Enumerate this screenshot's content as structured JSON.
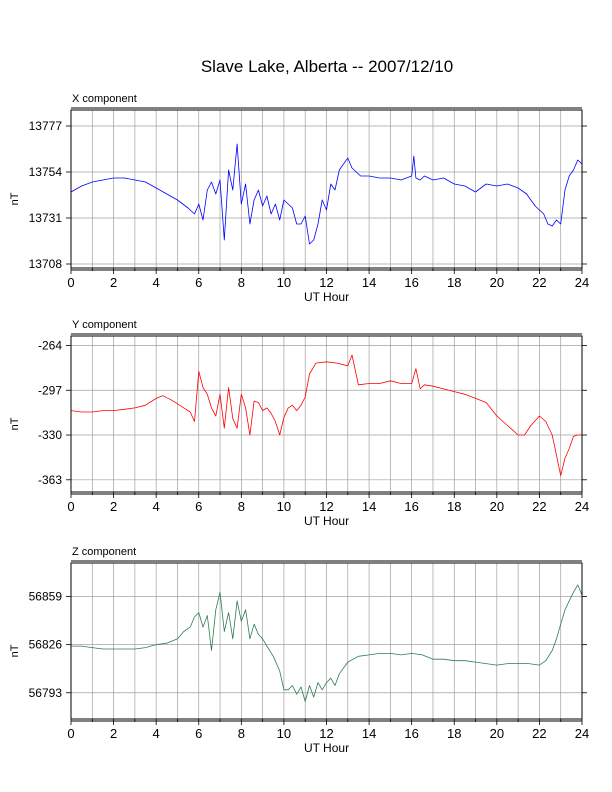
{
  "title": "Slave Lake, Alberta -- 2007/12/10",
  "chart_data": [
    {
      "type": "line",
      "panel_label": "X component",
      "ylabel": "nT",
      "xlabel": "UT Hour",
      "xlim": [
        0,
        24
      ],
      "ylim": [
        13706,
        13785
      ],
      "x_ticks": [
        "0",
        "2",
        "4",
        "6",
        "8",
        "10",
        "12",
        "14",
        "16",
        "18",
        "20",
        "22",
        "24"
      ],
      "y_ticks": [
        13708,
        13731,
        13754,
        13777
      ],
      "color": "#0000ff",
      "grid": true,
      "series": [
        {
          "x": [
            0,
            0.5,
            1,
            1.5,
            2,
            2.5,
            3,
            3.5,
            4,
            4.5,
            5,
            5.5,
            5.8,
            6,
            6.2,
            6.4,
            6.6,
            6.8,
            7,
            7.2,
            7.4,
            7.6,
            7.8,
            8,
            8.2,
            8.4,
            8.6,
            8.8,
            9,
            9.2,
            9.4,
            9.6,
            9.8,
            10,
            10.2,
            10.4,
            10.6,
            10.8,
            11,
            11.2,
            11.4,
            11.6,
            11.8,
            12,
            12.2,
            12.4,
            12.6,
            12.8,
            13,
            13.2,
            13.4,
            13.6,
            14,
            14.5,
            15,
            15.5,
            16,
            16.1,
            16.2,
            16.4,
            16.6,
            17,
            17.5,
            18,
            18.5,
            19,
            19.5,
            20,
            20.5,
            21,
            21.4,
            21.8,
            22,
            22.2,
            22.4,
            22.6,
            22.8,
            23,
            23.2,
            23.4,
            23.6,
            23.8,
            24
          ],
          "values": [
            13744,
            13747,
            13749,
            13750,
            13751,
            13751,
            13750,
            13749,
            13746,
            13743,
            13740,
            13736,
            13733,
            13738,
            13730,
            13745,
            13749,
            13743,
            13750,
            13720,
            13755,
            13745,
            13768,
            13738,
            13748,
            13728,
            13740,
            13745,
            13737,
            13742,
            13733,
            13738,
            13730,
            13740,
            13738,
            13736,
            13728,
            13728,
            13732,
            13718,
            13720,
            13728,
            13740,
            13735,
            13748,
            13745,
            13755,
            13758,
            13761,
            13756,
            13754,
            13752,
            13752,
            13751,
            13751,
            13750,
            13752,
            13762,
            13751,
            13750,
            13752,
            13750,
            13751,
            13748,
            13747,
            13744,
            13748,
            13747,
            13748,
            13746,
            13743,
            13737,
            13735,
            13733,
            13728,
            13727,
            13730,
            13728,
            13745,
            13752,
            13755,
            13760,
            13758
          ]
        }
      ]
    },
    {
      "type": "line",
      "panel_label": "Y component",
      "ylabel": "nT",
      "xlabel": "UT Hour",
      "xlim": [
        0,
        24
      ],
      "ylim": [
        -372,
        -257
      ],
      "x_ticks": [
        "0",
        "2",
        "4",
        "6",
        "8",
        "10",
        "12",
        "14",
        "16",
        "18",
        "20",
        "22",
        "24"
      ],
      "y_ticks": [
        -264,
        -297,
        -330,
        -363
      ],
      "color": "#ff0000",
      "grid": true,
      "series": [
        {
          "x": [
            0,
            0.5,
            1,
            1.5,
            2,
            2.5,
            3,
            3.5,
            4,
            4.3,
            4.7,
            5,
            5.3,
            5.6,
            5.8,
            6,
            6.2,
            6.4,
            6.6,
            6.8,
            7,
            7.2,
            7.4,
            7.6,
            7.8,
            8,
            8.2,
            8.4,
            8.6,
            8.8,
            9,
            9.2,
            9.4,
            9.6,
            9.8,
            10,
            10.2,
            10.4,
            10.6,
            10.8,
            11,
            11.2,
            11.5,
            12,
            12.5,
            13,
            13.2,
            13.5,
            14,
            14.5,
            15,
            15.5,
            16,
            16.2,
            16.4,
            16.6,
            17,
            17.5,
            18,
            18.5,
            19,
            19.5,
            20,
            20.5,
            21,
            21.3,
            21.6,
            22,
            22.3,
            22.6,
            22.8,
            23,
            23.2,
            23.4,
            23.6,
            23.8,
            24
          ],
          "values": [
            -312,
            -313,
            -313,
            -312,
            -312,
            -311,
            -310,
            -308,
            -303,
            -301,
            -304,
            -307,
            -310,
            -313,
            -320,
            -283,
            -295,
            -300,
            -310,
            -316,
            -300,
            -325,
            -295,
            -318,
            -325,
            -300,
            -310,
            -330,
            -305,
            -306,
            -312,
            -310,
            -314,
            -320,
            -330,
            -317,
            -310,
            -308,
            -312,
            -308,
            -302,
            -285,
            -277,
            -276,
            -277,
            -279,
            -271,
            -293,
            -292,
            -292,
            -290,
            -292,
            -292,
            -281,
            -296,
            -293,
            -294,
            -296,
            -298,
            -300,
            -303,
            -306,
            -316,
            -323,
            -330,
            -330,
            -323,
            -316,
            -320,
            -330,
            -345,
            -360,
            -347,
            -340,
            -331,
            -330,
            -330
          ]
        }
      ]
    },
    {
      "type": "line",
      "panel_label": "Z component",
      "ylabel": "nT",
      "xlabel": "UT Hour",
      "xlim": [
        0,
        24
      ],
      "ylim": [
        6775,
        6882
      ],
      "tick_label_prefix": "56",
      "x_ticks": [
        "0",
        "2",
        "4",
        "6",
        "8",
        "10",
        "12",
        "14",
        "16",
        "18",
        "20",
        "22",
        "24"
      ],
      "y_ticks": [
        "56793",
        "56826",
        "56859"
      ],
      "y_tick_values": [
        6793,
        6826,
        6859
      ],
      "color": "#2e7d4f",
      "grid": true,
      "series": [
        {
          "x": [
            0,
            0.5,
            1,
            1.5,
            2,
            2.5,
            3,
            3.5,
            4,
            4.5,
            5,
            5.3,
            5.6,
            5.8,
            6,
            6.2,
            6.4,
            6.6,
            6.8,
            7,
            7.2,
            7.4,
            7.6,
            7.8,
            8,
            8.2,
            8.4,
            8.6,
            8.8,
            9,
            9.2,
            9.5,
            9.8,
            10,
            10.2,
            10.4,
            10.6,
            10.8,
            11,
            11.2,
            11.4,
            11.6,
            11.8,
            12,
            12.2,
            12.4,
            12.6,
            12.8,
            13,
            13.5,
            14,
            14.5,
            15,
            15.5,
            16,
            16.5,
            17,
            17.5,
            18,
            18.5,
            19,
            19.5,
            20,
            20.5,
            21,
            21.5,
            22,
            22.3,
            22.6,
            22.8,
            23,
            23.2,
            23.4,
            23.6,
            23.8,
            24
          ],
          "values": [
            6825,
            6825,
            6824,
            6823,
            6823,
            6823,
            6823,
            6824,
            6826,
            6827,
            6830,
            6835,
            6838,
            6845,
            6848,
            6838,
            6846,
            6822,
            6850,
            6862,
            6835,
            6848,
            6830,
            6856,
            6842,
            6850,
            6830,
            6840,
            6833,
            6830,
            6825,
            6818,
            6808,
            6795,
            6795,
            6798,
            6792,
            6797,
            6787,
            6798,
            6790,
            6800,
            6795,
            6800,
            6803,
            6798,
            6806,
            6810,
            6814,
            6818,
            6819,
            6820,
            6820,
            6819,
            6820,
            6819,
            6816,
            6816,
            6815,
            6815,
            6814,
            6813,
            6812,
            6813,
            6813,
            6813,
            6812,
            6815,
            6822,
            6830,
            6840,
            6850,
            6856,
            6862,
            6867,
            6860
          ]
        }
      ]
    }
  ]
}
